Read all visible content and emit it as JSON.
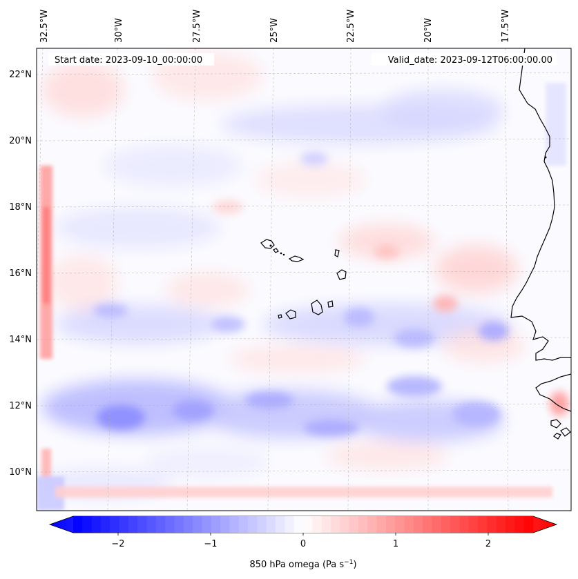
{
  "map": {
    "start_date": "Start date: 2023-09-10_00:00:00",
    "valid_date": "Valid_date: 2023-09-12T06:00:00.00",
    "lon_labels": [
      "32.5°W",
      "30°W",
      "27.5°W",
      "25°W",
      "22.5°W",
      "20°W",
      "17.5°W"
    ],
    "lat_labels": [
      "22°N",
      "20°N",
      "18°N",
      "16°N",
      "14°N",
      "12°N",
      "10°N"
    ],
    "colors": {
      "negative": "#0000ff",
      "zero": "#ffffff",
      "positive": "#ff0000",
      "coastline": "#000000",
      "gridline": "#b0b0b0"
    }
  },
  "colorbar": {
    "ticks": [
      "−2",
      "−1",
      "0",
      "1",
      "2"
    ],
    "label_main": "850 hPa omega (Pa s",
    "label_exp": "−1",
    "label_close": ")",
    "range": [
      -2.75,
      2.75
    ]
  }
}
